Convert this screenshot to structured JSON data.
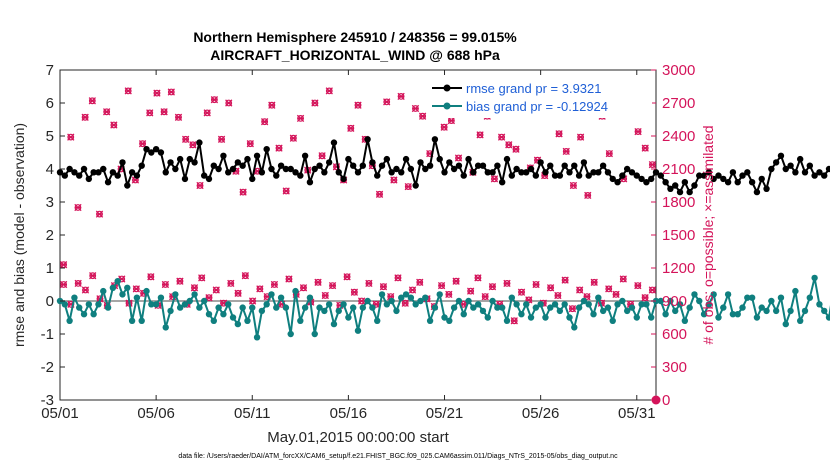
{
  "chart_data": {
    "type": "line",
    "title_line1": "Northern Hemisphere 245910 / 248356 = 99.015%",
    "title_line2": "AIRCRAFT_HORIZONTAL_WIND @ 688 hPa",
    "xlabel": "May.01,2015 00:00:00 start",
    "ylabel_left": "rmse and bias (model - observation)",
    "ylabel_right": "# of obs: o=possible; ×=assimilated",
    "footer": "data file: /Users/raeder/DAI/ATM_forcXX/CAM6_setup/f.e21.FHIST_BGC.f09_025.CAM6assim.011/Diags_NTrS_2015-05/obs_diag_output.nc",
    "xlim": [
      1,
      32
    ],
    "ylim_left": [
      -3,
      7
    ],
    "ylim_right": [
      0,
      3000
    ],
    "x_ticks": [
      1,
      6,
      11,
      16,
      21,
      26,
      31
    ],
    "x_tick_labels": [
      "05/01",
      "05/06",
      "05/11",
      "05/16",
      "05/21",
      "05/26",
      "05/31"
    ],
    "y_left_ticks": [
      -3,
      -2,
      -1,
      0,
      1,
      2,
      3,
      4,
      5,
      6,
      7
    ],
    "y_left_tick_labels": [
      "-3",
      "-2",
      "-1",
      "0",
      "1",
      "2",
      "3",
      "4",
      "5",
      "6",
      "7"
    ],
    "y_right_ticks": [
      0,
      300,
      600,
      900,
      1200,
      1500,
      1800,
      2100,
      2400,
      2700,
      3000
    ],
    "y_right_tick_labels": [
      "0",
      "300",
      "600",
      "900",
      "1200",
      "1500",
      "1800",
      "2100",
      "2400",
      "2700",
      "3000"
    ],
    "legend": [
      {
        "name": "rmse grand pr = 3.9321",
        "color": "#000000"
      },
      {
        "name": "bias grand pr = -0.12924",
        "color": "#0f7f7f"
      }
    ],
    "legend_position": "top-right",
    "colors": {
      "rmse": "#000000",
      "bias": "#0f7f7f",
      "obs": "#d4145a",
      "zero_line": "#a6a6a6",
      "legend_text": "#1f5fd6"
    },
    "time_step_days": 0.25,
    "rmse": [
      3.9,
      3.8,
      4.0,
      3.9,
      3.8,
      4.0,
      3.7,
      3.9,
      3.9,
      4.0,
      3.6,
      3.9,
      3.8,
      4.2,
      3.5,
      3.9,
      3.8,
      4.1,
      4.6,
      4.5,
      4.6,
      4.5,
      3.9,
      4.2,
      4.0,
      4.3,
      3.7,
      4.3,
      4.2,
      4.8,
      3.8,
      3.7,
      4.1,
      4.0,
      4.4,
      3.9,
      4.0,
      4.2,
      4.1,
      4.3,
      3.7,
      4.4,
      3.9,
      4.6,
      4.0,
      3.8,
      4.1,
      4.0,
      4.0,
      3.9,
      3.8,
      4.4,
      3.6,
      4.0,
      4.1,
      3.9,
      4.2,
      4.8,
      3.9,
      3.7,
      4.3,
      4.1,
      3.9,
      4.1,
      4.9,
      4.2,
      3.8,
      4.1,
      4.3,
      3.9,
      4.0,
      3.9,
      4.3,
      4.0,
      3.5,
      4.2,
      4.0,
      4.1,
      4.9,
      4.3,
      3.9,
      4.2,
      4.0,
      4.1,
      3.8,
      4.3,
      3.9,
      4.1,
      4.1,
      3.9,
      3.9,
      4.1,
      3.6,
      4.3,
      3.8,
      4.0,
      3.9,
      3.9,
      4.0,
      3.8,
      4.2,
      3.9,
      4.1,
      3.8,
      3.8,
      4.1,
      3.9,
      4.1,
      3.8,
      4.2,
      3.8,
      3.9,
      3.9,
      4.1,
      3.9,
      3.7,
      3.6,
      3.8,
      4.0,
      3.9,
      3.8,
      3.7,
      3.6,
      3.7,
      3.9,
      3.8,
      3.6,
      3.4,
      3.5,
      3.3,
      3.6,
      3.3,
      3.5,
      3.8,
      3.8,
      3.9,
      3.7,
      3.8,
      3.7,
      3.6,
      3.9,
      3.6,
      3.8,
      3.9,
      3.6,
      3.3,
      3.7,
      3.4,
      4.0,
      4.2,
      4.4,
      4.0,
      4.1,
      3.9,
      4.3,
      3.9,
      4.1,
      3.8,
      3.9,
      3.8,
      4.0,
      3.8,
      3.9,
      3.9,
      3.8,
      3.9,
      4.0,
      3.7,
      3.8,
      4.0
    ],
    "bias": [
      0.0,
      -0.1,
      -0.6,
      0.1,
      -0.2,
      -0.4,
      -0.1,
      -0.4,
      -0.1,
      0.3,
      -0.2,
      0.4,
      0.6,
      0.2,
      0.4,
      -0.6,
      0.1,
      -0.6,
      0.3,
      -0.1,
      -0.1,
      0.1,
      -0.8,
      -0.3,
      0.2,
      -0.2,
      -0.1,
      0.0,
      0.2,
      -0.2,
      0.0,
      -0.4,
      -0.6,
      -0.2,
      -0.4,
      -0.1,
      -0.5,
      -0.7,
      -0.2,
      -0.6,
      -0.2,
      -1.1,
      -0.3,
      -0.1,
      0.2,
      -0.2,
      0.1,
      -0.2,
      -1.0,
      0.3,
      -0.6,
      -0.2,
      0.1,
      -1.0,
      -0.2,
      -0.3,
      -0.1,
      -0.7,
      -0.3,
      -0.1,
      -0.5,
      -0.2,
      -0.9,
      -0.2,
      0.0,
      -0.2,
      -0.6,
      0.2,
      -0.1,
      0.0,
      -0.3,
      0.1,
      0.2,
      0.1,
      -0.1,
      0.0,
      0.1,
      -0.6,
      -0.2,
      0.2,
      -0.5,
      -0.6,
      -0.2,
      0.0,
      -0.4,
      0.0,
      -0.2,
      -0.1,
      -0.3,
      -0.5,
      0.0,
      -0.2,
      -0.2,
      -0.6,
      0.1,
      -0.1,
      -0.4,
      -0.1,
      -0.5,
      -0.2,
      -0.1,
      -0.5,
      -0.2,
      -0.1,
      -0.3,
      -0.1,
      -0.5,
      -0.8,
      -0.2,
      0.0,
      -0.1,
      -0.4,
      0.1,
      -0.3,
      -0.2,
      -0.6,
      -0.1,
      0.0,
      -0.3,
      -0.2,
      -0.5,
      -0.1,
      -0.1,
      -0.5,
      0.0,
      0.0,
      -0.4,
      0.0,
      -0.3,
      -0.1,
      -0.6,
      -0.2,
      0.2,
      0.0,
      -0.4,
      -0.1,
      0.2,
      -0.5,
      -0.2,
      0.2,
      -0.4,
      -0.4,
      -0.2,
      0.1,
      0.1,
      -0.5,
      -0.2,
      -0.3,
      0.0,
      -0.3,
      0.1,
      -0.7,
      -0.3,
      0.3,
      -0.6,
      -0.3,
      0.1,
      0.7,
      -0.1,
      -0.3,
      -0.5,
      0.4,
      -0.2,
      0.0,
      -0.4,
      -0.2,
      -0.4,
      -0.3,
      -0.4,
      0.1
    ],
    "obs_possible": [
      1230,
      2390,
      1750,
      2570,
      2720,
      1690,
      2620,
      2500,
      2100,
      2810,
      2000,
      2330,
      2610,
      2790,
      2620,
      2800,
      2570,
      2370,
      2320,
      1950,
      2610,
      2730,
      2370,
      2700,
      2080,
      1890,
      2330,
      2080,
      2530,
      2680,
      2290,
      1900,
      2380,
      2560,
      2090,
      2700,
      2220,
      2810,
      2120,
      2000,
      2470,
      2680,
      2370,
      2130,
      1870,
      2710,
      2000,
      2760,
      1940,
      2650,
      2580,
      2240,
      2640,
      2480,
      2540,
      2200,
      2610,
      2070,
      2410,
      2580,
      2010,
      2390,
      2320,
      2280,
      2730,
      2110,
      2180,
      2040,
      2720,
      2420,
      2260,
      1950,
      2390,
      1860,
      2710,
      2580,
      2240,
      2840,
      2010,
      2660,
      2440,
      2290,
      2140
    ],
    "obs_assimilated": [
      1230,
      2390,
      1750,
      2570,
      2720,
      1690,
      2620,
      2500,
      2100,
      2810,
      2000,
      2330,
      2610,
      2790,
      2620,
      2800,
      2570,
      2370,
      2320,
      1950,
      2610,
      2730,
      2370,
      2700,
      2080,
      1890,
      2330,
      2080,
      2530,
      2680,
      2290,
      1900,
      2380,
      2560,
      2090,
      2700,
      2220,
      2810,
      2120,
      2000,
      2470,
      2680,
      2370,
      2130,
      1870,
      2710,
      2000,
      2760,
      1940,
      2650,
      2580,
      2240,
      2640,
      2480,
      2540,
      2200,
      2610,
      2070,
      2410,
      2580,
      2010,
      2390,
      2320,
      2280,
      2730,
      2110,
      2180,
      2040,
      2720,
      2420,
      2260,
      1950,
      2390,
      1860,
      2710,
      2580,
      2240,
      2840,
      2010,
      2660,
      2440,
      2290,
      2140
    ],
    "obs_low_possible": [
      1050,
      870,
      1060,
      1000,
      1130,
      920,
      860,
      1040,
      1100,
      880,
      1010,
      970,
      1120,
      860,
      1050,
      940,
      1080,
      870,
      1020,
      1110,
      930,
      1000,
      880,
      1060,
      970,
      1130,
      900,
      1010,
      940,
      1050,
      870,
      1100,
      960,
      1020,
      890,
      1070,
      950,
      1040,
      860,
      1120,
      980,
      900,
      1060,
      870,
      1030,
      940,
      1110,
      880,
      1000,
      1070,
      920,
      850,
      1040,
      960,
      1080,
      870,
      990,
      1110,
      940,
      1030,
      870,
      1060,
      720,
      980,
      910,
      1050,
      880,
      1020,
      950,
      1090,
      830,
      1000,
      940,
      1070,
      880,
      1010,
      960,
      1100,
      870,
      1040,
      930,
      1000
    ],
    "obs_low_assimilated": [
      1050,
      870,
      1060,
      1000,
      1130,
      920,
      860,
      1040,
      1100,
      880,
      1010,
      970,
      1120,
      860,
      1050,
      940,
      1080,
      870,
      1020,
      1110,
      930,
      1000,
      880,
      1060,
      970,
      1130,
      900,
      1010,
      940,
      1050,
      870,
      1100,
      960,
      1020,
      890,
      1070,
      950,
      1040,
      860,
      1120,
      980,
      900,
      1060,
      870,
      1030,
      940,
      1110,
      880,
      1000,
      1070,
      920,
      850,
      1040,
      960,
      1080,
      870,
      990,
      1110,
      940,
      1030,
      870,
      1060,
      720,
      980,
      910,
      1050,
      880,
      1020,
      950,
      1090,
      830,
      1000,
      940,
      1070,
      880,
      1010,
      960,
      1100,
      870,
      1040,
      930,
      1000
    ],
    "obs_zero_marker_day": 32
  }
}
